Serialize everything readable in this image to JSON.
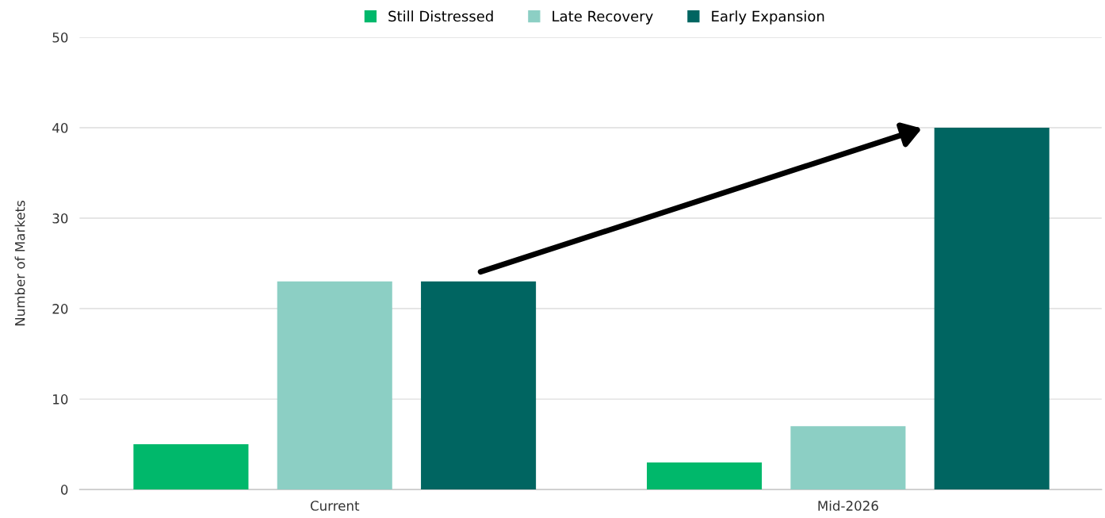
{
  "chart_data": {
    "type": "bar",
    "ylabel": "Number of Markets",
    "categories": [
      "Current",
      "Mid-2026"
    ],
    "series": [
      {
        "name": "Still Distressed",
        "color": "#00b86b",
        "values": [
          5,
          3
        ]
      },
      {
        "name": "Late Recovery",
        "color": "#8ccfc4",
        "values": [
          23,
          7
        ]
      },
      {
        "name": "Early Expansion",
        "color": "#006561",
        "values": [
          23,
          40
        ]
      }
    ],
    "ylim": [
      0,
      50
    ],
    "yticks": [
      0,
      10,
      20,
      30,
      40,
      50
    ],
    "grid": "y",
    "legend": "top"
  }
}
